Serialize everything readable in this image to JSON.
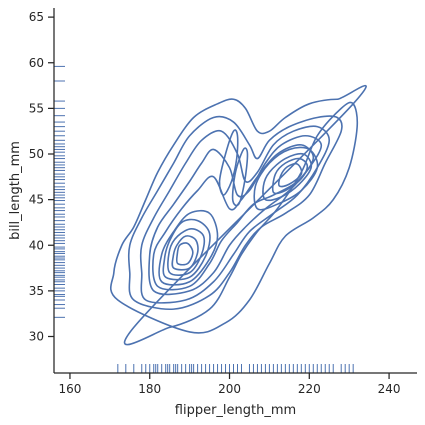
{
  "chart_data": {
    "type": "kde-contour",
    "xlabel": "flipper_length_mm",
    "ylabel": "bill_length_mm",
    "xlim": [
      156,
      247
    ],
    "ylim": [
      26,
      66
    ],
    "xticks": [
      160,
      180,
      200,
      220,
      240
    ],
    "yticks": [
      30,
      35,
      40,
      45,
      50,
      55,
      60,
      65
    ],
    "grid": false,
    "line_color": "#4c72b0",
    "rug_x_values": [
      172,
      174,
      176,
      178,
      179,
      180,
      181,
      181.5,
      182,
      183,
      184,
      184.5,
      185,
      186,
      186.5,
      187,
      188,
      189,
      190,
      190.5,
      191,
      192,
      193,
      194,
      195,
      196,
      197,
      198,
      199,
      200,
      201,
      202,
      203,
      205,
      206,
      207,
      208,
      209,
      210,
      211,
      212,
      213,
      214,
      215,
      216,
      217,
      218,
      219,
      220,
      221,
      222,
      223,
      224,
      225,
      226,
      228,
      229,
      230,
      231
    ],
    "rug_y_values": [
      32.1,
      33.1,
      33.5,
      34.0,
      34.4,
      34.6,
      35.0,
      35.3,
      35.7,
      36.0,
      36.2,
      36.5,
      36.7,
      37.0,
      37.2,
      37.5,
      37.8,
      38.1,
      38.4,
      38.6,
      38.8,
      39.1,
      39.3,
      39.6,
      39.8,
      40.2,
      40.5,
      40.8,
      41.1,
      41.4,
      41.7,
      42.0,
      42.3,
      42.7,
      43.1,
      43.4,
      43.8,
      44.1,
      44.5,
      44.9,
      45.2,
      45.5,
      45.8,
      46.1,
      46.4,
      46.8,
      47.2,
      47.5,
      47.8,
      48.2,
      48.5,
      48.8,
      49.1,
      49.5,
      49.8,
      50.2,
      50.5,
      50.8,
      51.1,
      51.5,
      52.0,
      52.5,
      53.0,
      53.5,
      54.2,
      55.0,
      55.8,
      58.0,
      59.6
    ],
    "contours": [
      [
        [
          176,
          31
        ],
        [
          185,
          31
        ],
        [
          195,
          33
        ],
        [
          200,
          36.5
        ],
        [
          203,
          39
        ],
        [
          207,
          41.5
        ],
        [
          212,
          44
        ],
        [
          218,
          48
        ],
        [
          222,
          52
        ],
        [
          228,
          55
        ],
        [
          231,
          55.5
        ],
        [
          232,
          53
        ],
        [
          230,
          48.5
        ],
        [
          226,
          45
        ],
        [
          221,
          43
        ],
        [
          214,
          41
        ],
        [
          210,
          38
        ],
        [
          205,
          34
        ],
        [
          199,
          31.5
        ],
        [
          190,
          30.5
        ]
      ],
      [
        [
          176,
          31
        ],
        [
          172,
          34
        ],
        [
          171,
          37
        ],
        [
          173,
          40
        ],
        [
          176,
          42
        ],
        [
          179,
          45
        ],
        [
          182,
          48
        ],
        [
          186,
          51
        ],
        [
          191,
          54
        ],
        [
          197,
          55.5
        ],
        [
          201,
          56
        ],
        [
          204,
          55
        ],
        [
          207,
          52.5
        ],
        [
          210,
          52.5
        ],
        [
          214,
          54
        ],
        [
          220,
          55.5
        ],
        [
          227,
          56
        ],
        [
          231,
          55.5
        ]
      ],
      [
        [
          176,
          34
        ],
        [
          186,
          33
        ],
        [
          195,
          34.5
        ],
        [
          200,
          37
        ],
        [
          204,
          40
        ],
        [
          208,
          42
        ],
        [
          214,
          43.5
        ],
        [
          220,
          45.5
        ],
        [
          224,
          49
        ],
        [
          228,
          52.5
        ],
        [
          227,
          54
        ],
        [
          222,
          54
        ],
        [
          215,
          53
        ],
        [
          210,
          51.5
        ],
        [
          207,
          49.5
        ],
        [
          205,
          51
        ],
        [
          201,
          53.5
        ],
        [
          196,
          54
        ],
        [
          190,
          52
        ],
        [
          186,
          49
        ],
        [
          182,
          46
        ],
        [
          178,
          43
        ],
        [
          175,
          40
        ],
        [
          175,
          37
        ]
      ],
      [
        [
          179,
          34
        ],
        [
          189,
          34
        ],
        [
          196,
          36
        ],
        [
          201,
          39
        ],
        [
          205,
          41.5
        ],
        [
          211,
          43.5
        ],
        [
          217,
          45.5
        ],
        [
          222,
          48.5
        ],
        [
          225,
          51.5
        ],
        [
          222,
          53
        ],
        [
          216,
          52.5
        ],
        [
          211,
          51
        ],
        [
          207,
          48
        ],
        [
          204,
          47
        ],
        [
          202,
          50
        ],
        [
          198,
          52.5
        ],
        [
          193,
          51.5
        ],
        [
          189,
          49
        ],
        [
          185,
          46
        ],
        [
          181,
          43
        ],
        [
          178,
          40
        ],
        [
          178,
          37
        ]
      ],
      [
        [
          181,
          35
        ],
        [
          190,
          35
        ],
        [
          196,
          37
        ],
        [
          200,
          40
        ],
        [
          204,
          42
        ],
        [
          209,
          44
        ],
        [
          215,
          46
        ],
        [
          220,
          48.5
        ],
        [
          223,
          51
        ],
        [
          219,
          52
        ],
        [
          213,
          51
        ],
        [
          209,
          49
        ],
        [
          205,
          46
        ],
        [
          202,
          45.5
        ],
        [
          200,
          48.5
        ],
        [
          196,
          50.5
        ],
        [
          193,
          49
        ],
        [
          190,
          47
        ],
        [
          186,
          44.5
        ],
        [
          182,
          42
        ],
        [
          180,
          39
        ]
      ],
      [
        [
          182,
          35.5
        ],
        [
          190,
          35.5
        ],
        [
          195,
          38
        ],
        [
          198,
          40.5
        ],
        [
          202,
          42.5
        ],
        [
          206,
          44.5
        ],
        [
          211,
          45.5
        ],
        [
          217,
          47
        ],
        [
          221,
          49.5
        ],
        [
          218,
          51
        ],
        [
          212,
          50
        ],
        [
          207,
          47.5
        ],
        [
          203,
          45
        ],
        [
          200,
          44
        ],
        [
          196,
          47.5
        ],
        [
          192,
          46
        ],
        [
          188,
          44
        ],
        [
          184,
          41.5
        ],
        [
          181,
          39
        ]
      ],
      [
        [
          183,
          36
        ],
        [
          190,
          36
        ],
        [
          195,
          38.5
        ],
        [
          197,
          41
        ],
        [
          195,
          43.5
        ],
        [
          190,
          43.5
        ],
        [
          186,
          41.5
        ],
        [
          183,
          39
        ]
      ],
      [
        [
          184,
          36.5
        ],
        [
          190,
          36.5
        ],
        [
          194,
          38.8
        ],
        [
          195,
          41.3
        ],
        [
          192,
          42.7
        ],
        [
          188,
          42.5
        ],
        [
          185,
          40.5
        ],
        [
          183.7,
          38.5
        ]
      ],
      [
        [
          185,
          37
        ],
        [
          190,
          37
        ],
        [
          193,
          39
        ],
        [
          193.5,
          41
        ],
        [
          190.5,
          41.8
        ],
        [
          187,
          41
        ],
        [
          185,
          39.5
        ]
      ],
      [
        [
          186,
          37.5
        ],
        [
          190,
          37.5
        ],
        [
          192,
          39.2
        ],
        [
          191.5,
          40.6
        ],
        [
          189,
          41
        ],
        [
          186.8,
          40
        ],
        [
          185.9,
          38.8
        ]
      ],
      [
        [
          187,
          38
        ],
        [
          189.5,
          38
        ],
        [
          190.8,
          39.2
        ],
        [
          189.5,
          40.2
        ],
        [
          187.5,
          40
        ],
        [
          186.9,
          39
        ]
      ],
      [
        [
          207,
          44
        ],
        [
          212,
          44.5
        ],
        [
          218,
          46
        ],
        [
          222,
          48.5
        ],
        [
          220,
          50.5
        ],
        [
          215,
          50.5
        ],
        [
          210,
          49
        ],
        [
          206.5,
          46.5
        ]
      ],
      [
        [
          209,
          45
        ],
        [
          213,
          45.3
        ],
        [
          217.5,
          46.7
        ],
        [
          220.5,
          48.6
        ],
        [
          218.5,
          50
        ],
        [
          214,
          49.5
        ],
        [
          210,
          48
        ],
        [
          208.5,
          46.5
        ]
      ],
      [
        [
          211,
          45.8
        ],
        [
          214,
          46
        ],
        [
          218,
          47.3
        ],
        [
          219.5,
          48.7
        ],
        [
          217.5,
          49.5
        ],
        [
          214,
          49
        ],
        [
          211.5,
          47.8
        ]
      ],
      [
        [
          212.5,
          46.5
        ],
        [
          215,
          46.7
        ],
        [
          218,
          47.8
        ],
        [
          217,
          48.9
        ],
        [
          214.5,
          48.6
        ],
        [
          212.8,
          47.6
        ]
      ],
      [
        [
          201,
          52.5
        ],
        [
          199,
          50
        ],
        [
          197.5,
          47
        ],
        [
          198.5,
          45.5
        ],
        [
          200.5,
          47
        ],
        [
          201.8,
          49.5
        ],
        [
          202,
          52
        ]
      ],
      [
        [
          203.5,
          50.5
        ],
        [
          201.5,
          48
        ],
        [
          200.8,
          45
        ],
        [
          202.3,
          44.5
        ],
        [
          203.8,
          47
        ],
        [
          204.5,
          50
        ]
      ]
    ]
  }
}
